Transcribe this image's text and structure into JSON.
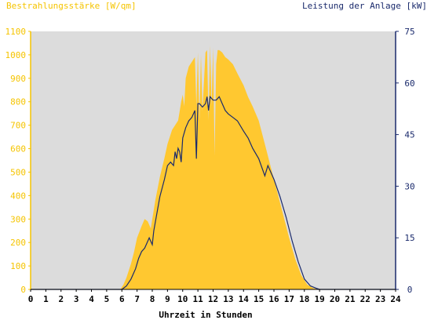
{
  "chart_data": {
    "type": "area",
    "left_title": "Bestrahlungsstärke [W/qm]",
    "right_title": "Leistung der Anlage [kW]",
    "xlabel": "Uhrzeit in Stunden",
    "xlim": [
      0,
      24
    ],
    "x_ticks": [
      "0",
      "1",
      "2",
      "3",
      "4",
      "5",
      "6",
      "7",
      "8",
      "9",
      "10",
      "11",
      "12",
      "13",
      "14",
      "15",
      "16",
      "17",
      "18",
      "19",
      "20",
      "21",
      "22",
      "23",
      "24"
    ],
    "ylim_left": [
      0,
      1100
    ],
    "y_ticks_left": [
      "0",
      "100",
      "200",
      "300",
      "400",
      "500",
      "600",
      "700",
      "800",
      "900",
      "1000",
      "1100"
    ],
    "ylim_right": [
      0,
      75
    ],
    "y_ticks_right": [
      "0",
      "15",
      "30",
      "45",
      "60",
      "75"
    ],
    "grid": false,
    "colors": {
      "irradiance": "#ffc830",
      "power": "#1a2a6c",
      "plot_bg": "#dcdcdc",
      "left_axis": "#f5c400",
      "right_axis": "#1a2a6c"
    },
    "series": [
      {
        "name": "Bestrahlungsstärke",
        "axis": "left",
        "x": [
          0,
          5.9,
          6.1,
          6.3,
          6.6,
          6.8,
          7.0,
          7.3,
          7.5,
          7.7,
          7.9,
          8.0,
          8.2,
          8.5,
          8.8,
          9.0,
          9.3,
          9.5,
          9.7,
          9.8,
          9.9,
          10.0,
          10.1,
          10.2,
          10.4,
          10.6,
          10.8,
          10.9,
          11.0,
          11.1,
          11.2,
          11.3,
          11.5,
          11.6,
          11.7,
          11.8,
          11.9,
          12.0,
          12.1,
          12.2,
          12.3,
          12.4,
          12.6,
          12.8,
          13.0,
          13.3,
          13.6,
          14.0,
          14.3,
          14.6,
          15.0,
          15.4,
          15.8,
          16.2,
          16.6,
          17.0,
          17.4,
          17.8,
          18.2,
          18.6,
          19.0,
          24
        ],
        "y": [
          0,
          0,
          20,
          50,
          110,
          160,
          220,
          270,
          300,
          290,
          260,
          300,
          380,
          480,
          560,
          620,
          680,
          700,
          720,
          760,
          800,
          830,
          780,
          900,
          950,
          970,
          990,
          780,
          1010,
          720,
          1000,
          760,
          1010,
          1020,
          720,
          1040,
          780,
          1030,
          570,
          960,
          1020,
          1020,
          1010,
          990,
          980,
          960,
          920,
          870,
          820,
          780,
          720,
          620,
          520,
          420,
          320,
          220,
          130,
          60,
          20,
          5,
          0,
          0
        ]
      },
      {
        "name": "Leistung der Anlage",
        "axis": "right",
        "x": [
          0,
          6.0,
          6.3,
          6.6,
          6.9,
          7.1,
          7.3,
          7.5,
          7.7,
          7.8,
          8.0,
          8.1,
          8.3,
          8.5,
          8.8,
          9.0,
          9.2,
          9.4,
          9.5,
          9.6,
          9.7,
          9.8,
          9.9,
          10.0,
          10.2,
          10.4,
          10.6,
          10.8,
          10.9,
          11.0,
          11.1,
          11.3,
          11.5,
          11.6,
          11.7,
          11.8,
          12.0,
          12.2,
          12.4,
          12.6,
          12.8,
          13.0,
          13.3,
          13.6,
          14.0,
          14.3,
          14.6,
          15.0,
          15.4,
          15.6,
          16.0,
          16.4,
          16.8,
          17.2,
          17.6,
          18.0,
          18.4,
          18.8,
          19.0,
          24
        ],
        "y": [
          0,
          0,
          1,
          3,
          6,
          9,
          11,
          12,
          14,
          15,
          13,
          17,
          22,
          27,
          32,
          36,
          37,
          36,
          40,
          38,
          41,
          40,
          37,
          44,
          47,
          49,
          50,
          52,
          38,
          54,
          54,
          53,
          54,
          56,
          52,
          56,
          55,
          55,
          56,
          54,
          52,
          51,
          50,
          49,
          46,
          44,
          41,
          38,
          33,
          36,
          32,
          27,
          21,
          14,
          8,
          3,
          1,
          0.3,
          0,
          0
        ]
      }
    ]
  }
}
